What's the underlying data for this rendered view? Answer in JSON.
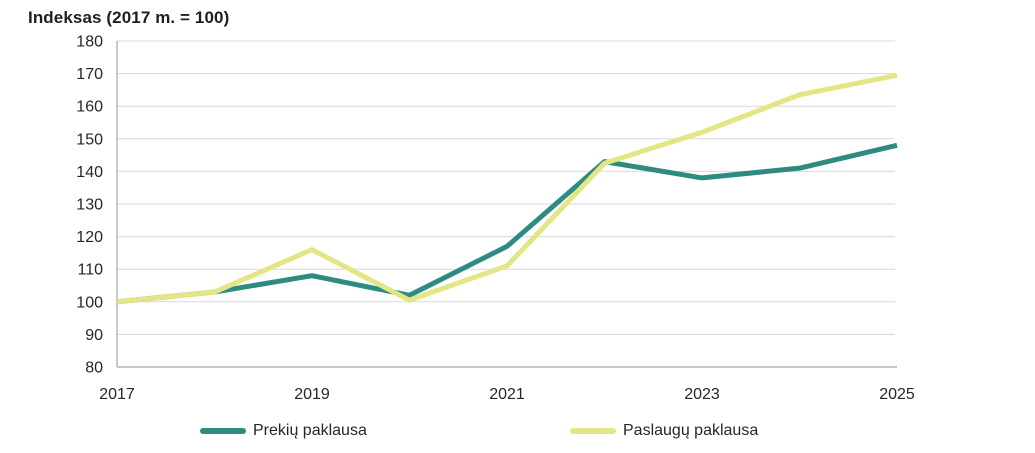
{
  "title": "Indeksas (2017 m. = 100)",
  "colors": {
    "series_goods": "#2E8B82",
    "series_services": "#E4E584",
    "axis_line": "#A6A6A6",
    "gridline": "#D9D9D9",
    "text": "#262626",
    "background": "#FFFFFF"
  },
  "chart_data": {
    "type": "line",
    "title": "Indeksas (2017 m. = 100)",
    "x": [
      "2017",
      "2018",
      "2019",
      "2020",
      "2021",
      "2022",
      "2023",
      "2024",
      "2025"
    ],
    "x_tick_labels": [
      "2017",
      "2019",
      "2021",
      "2023",
      "2025"
    ],
    "x_tick_every": 2,
    "series": [
      {
        "name": "Prekių paklausa",
        "color": "#2E8B82",
        "values": [
          100,
          103,
          108,
          102,
          117,
          143,
          138,
          141,
          148
        ]
      },
      {
        "name": "Paslaugų paklausa",
        "color": "#E4E584",
        "values": [
          100,
          103,
          116,
          100.5,
          111,
          142.5,
          152,
          163.5,
          169.5
        ]
      }
    ],
    "ylabel": "Indeksas (2017 m. = 100)",
    "xlabel": "",
    "ylim": [
      80,
      180
    ],
    "ytick_step": 10,
    "grid": "horizontal",
    "legend_position": "bottom"
  }
}
